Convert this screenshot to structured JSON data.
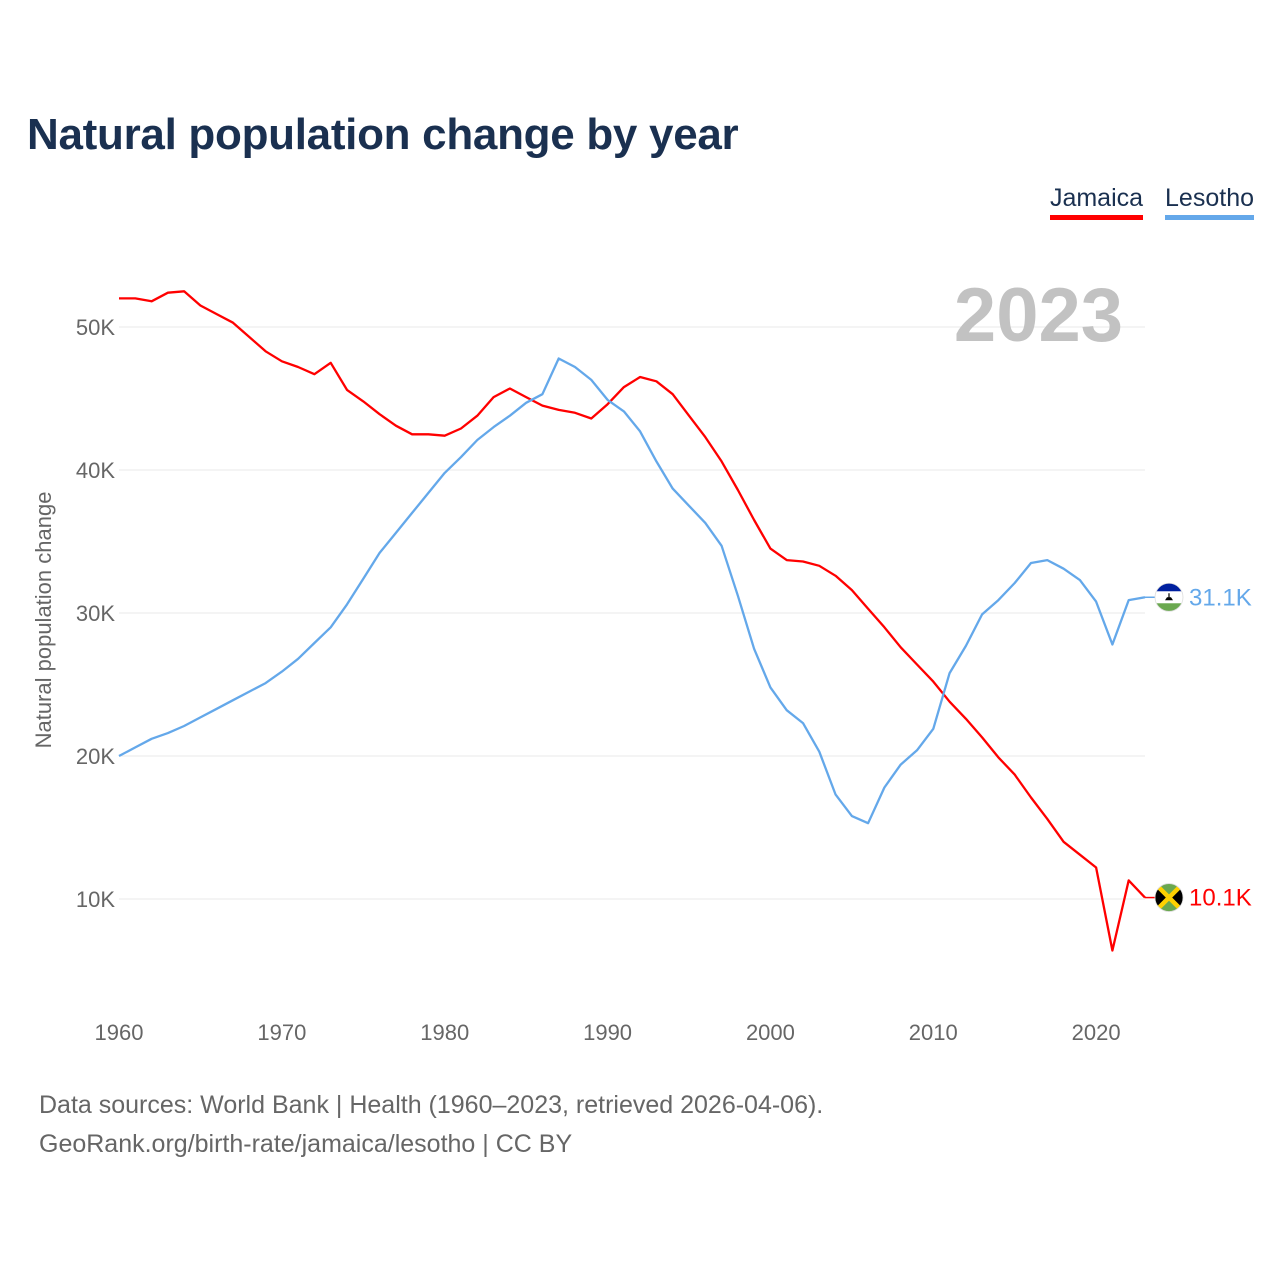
{
  "title": "Natural population change by year",
  "current_year": "2023",
  "footer": {
    "line1": "Data sources: World Bank | Health (1960–2023, retrieved 2026-04-06).",
    "line2": "GeoRank.org/birth-rate/jamaica/lesotho | CC BY"
  },
  "chart_data": {
    "type": "line",
    "title": "Natural population change by year",
    "xlabel": "",
    "ylabel": "Natural population change",
    "xlim": [
      1960,
      2023
    ],
    "ylim": [
      3,
      56
    ],
    "grid": true,
    "legend_position": "top-right",
    "x_ticks": [
      1960,
      1970,
      1980,
      1990,
      2000,
      2010,
      2020
    ],
    "x_tick_labels": [
      "1960",
      "1970",
      "1980",
      "1990",
      "2000",
      "2010",
      "2020"
    ],
    "y_ticks": [
      10,
      20,
      30,
      40,
      50
    ],
    "y_tick_labels": [
      "10K",
      "20K",
      "30K",
      "40K",
      "50K"
    ],
    "units": "thousands",
    "series": [
      {
        "name": "Jamaica",
        "color": "#ff0000",
        "flag": "jamaica-flag",
        "end_label": "10.1K",
        "start_year": 1960,
        "values": [
          52.0,
          52.0,
          51.8,
          52.4,
          52.5,
          51.5,
          50.9,
          50.3,
          49.3,
          48.3,
          47.6,
          47.2,
          46.7,
          47.5,
          45.6,
          44.8,
          43.9,
          43.1,
          42.5,
          42.5,
          42.4,
          42.9,
          43.8,
          45.1,
          45.7,
          45.1,
          44.5,
          44.2,
          44.0,
          43.6,
          44.6,
          45.8,
          46.5,
          46.2,
          45.3,
          43.8,
          42.3,
          40.6,
          38.6,
          36.5,
          34.5,
          33.7,
          33.6,
          33.3,
          32.6,
          31.6,
          30.3,
          29.0,
          27.6,
          26.4,
          25.2,
          23.8,
          22.6,
          21.3,
          19.9,
          18.7,
          17.1,
          15.6,
          14.0,
          13.1,
          12.2,
          6.4,
          11.3,
          10.1
        ]
      },
      {
        "name": "Lesotho",
        "color": "#64a8ea",
        "flag": "lesotho-flag",
        "end_label": "31.1K",
        "start_year": 1960,
        "values": [
          20.0,
          20.6,
          21.2,
          21.6,
          22.1,
          22.7,
          23.3,
          23.9,
          24.5,
          25.1,
          25.9,
          26.8,
          27.9,
          29.0,
          30.6,
          32.4,
          34.2,
          35.6,
          37.0,
          38.4,
          39.8,
          40.9,
          42.1,
          43.0,
          43.8,
          44.7,
          45.3,
          47.8,
          47.2,
          46.3,
          44.9,
          44.1,
          42.7,
          40.6,
          38.7,
          37.5,
          36.3,
          34.7,
          31.2,
          27.5,
          24.8,
          23.2,
          22.3,
          20.3,
          17.3,
          15.8,
          15.3,
          17.8,
          19.4,
          20.4,
          21.9,
          25.8,
          27.7,
          29.9,
          30.9,
          32.1,
          33.5,
          33.7,
          33.1,
          32.3,
          30.8,
          27.8,
          30.9,
          31.1
        ]
      }
    ]
  }
}
